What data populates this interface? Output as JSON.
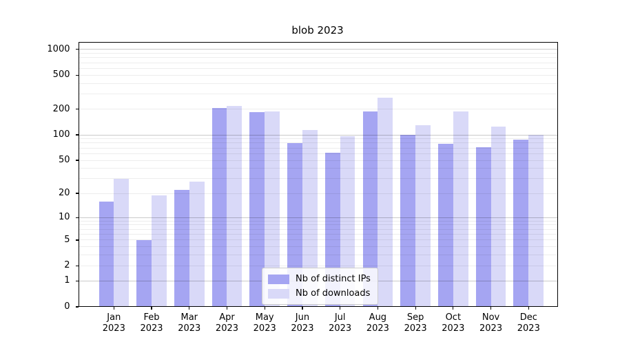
{
  "title": "blob 2023",
  "colors": {
    "distinct_ips": "#a5a5f2",
    "downloads": "#d9d9f8",
    "grid_major": "#c9c9c9",
    "grid_minor": "#ededed",
    "axis": "#000000",
    "legend_border": "#cccccc"
  },
  "chart_data": {
    "type": "bar",
    "title": "blob 2023",
    "categories": [
      "Jan 2023",
      "Feb 2023",
      "Mar 2023",
      "Apr 2023",
      "May 2023",
      "Jun 2023",
      "Jul 2023",
      "Aug 2023",
      "Sep 2023",
      "Oct 2023",
      "Nov 2023",
      "Dec 2023"
    ],
    "series": [
      {
        "name": "Nb of distinct IPs",
        "color": "#a5a5f2",
        "values": [
          16,
          5,
          22,
          205,
          184,
          80,
          62,
          190,
          100,
          79,
          72,
          88
        ]
      },
      {
        "name": "Nb of downloads",
        "color": "#d9d9f8",
        "values": [
          30,
          19,
          28,
          220,
          190,
          114,
          97,
          275,
          130,
          188,
          126,
          100
        ]
      }
    ],
    "xlabel": "",
    "ylabel": "",
    "yscale": "symlog-log1p",
    "yticks": [
      0,
      1,
      2,
      5,
      10,
      20,
      50,
      100,
      200,
      500,
      1000
    ],
    "ylim": [
      0,
      1220
    ],
    "grid": true,
    "legend_position": "lower center"
  }
}
